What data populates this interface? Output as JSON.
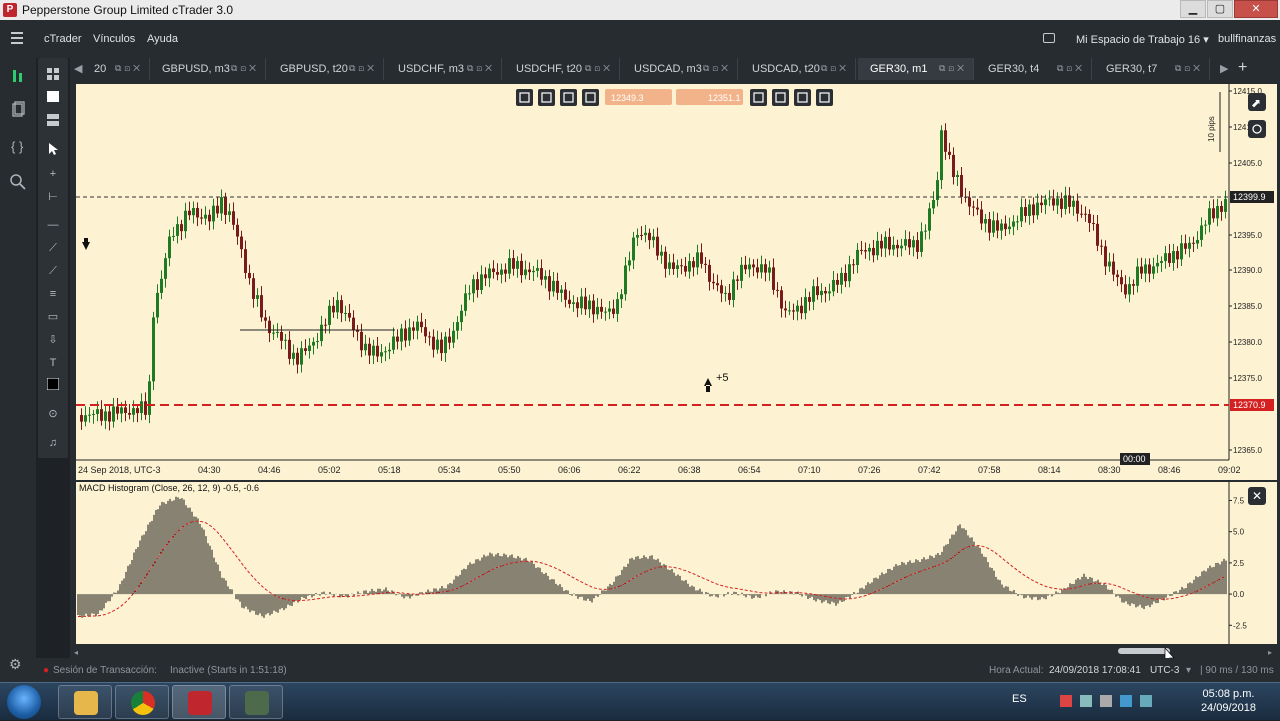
{
  "window": {
    "title": "Pepperstone Group Limited cTrader 3.0",
    "app_icon_letter": "P",
    "minimize_glyph": "▁",
    "maximize_glyph": "▢",
    "close_glyph": "✕"
  },
  "menubar": {
    "items": [
      "cTrader",
      "Vínculos",
      "Ayuda"
    ],
    "workspace": "Mi Espacio de Trabajo 16",
    "workspace_caret": "▾",
    "user": "bullfinanzas"
  },
  "tabs": [
    {
      "label": "20",
      "active": false
    },
    {
      "label": "GBPUSD, m3",
      "active": false
    },
    {
      "label": "GBPUSD, t20",
      "active": false
    },
    {
      "label": "USDCHF, m3",
      "active": false
    },
    {
      "label": "USDCHF, t20",
      "active": false
    },
    {
      "label": "USDCAD, m3",
      "active": false
    },
    {
      "label": "USDCAD, t20",
      "active": false
    },
    {
      "label": "GER30, m1",
      "active": true
    },
    {
      "label": "GER30, t4",
      "active": false
    },
    {
      "label": "GER30, t7",
      "active": false
    }
  ],
  "tab_controls": {
    "left_arrow": "◀",
    "right_arrow": "▶",
    "add": "+"
  },
  "chart": {
    "symbol": "GER30",
    "timeframe": "m1",
    "sell_price": "12349.3",
    "buy_price": "12351.1",
    "colors": {
      "background": "#fdf3d3",
      "bull": "#1f7a24",
      "bear": "#7a1b1b",
      "stop_line": "#d42020",
      "current_line": "#333333"
    },
    "price_axis_labels": [
      "12415.0",
      "12410.0",
      "12405.0",
      "12399.9",
      "12395.0",
      "12390.0",
      "12385.0",
      "12380.0",
      "12375.0",
      "12370.9",
      "12365.0"
    ],
    "current_price": "12399.9",
    "stop_price": "12370.9",
    "pips_label": "10 pips",
    "time_axis_labels": [
      "24 Sep 2018, UTC-3",
      "04:30",
      "04:46",
      "05:02",
      "05:18",
      "05:34",
      "05:50",
      "06:06",
      "06:22",
      "06:38",
      "06:54",
      "07:10",
      "07:26",
      "07:42",
      "07:58",
      "08:14",
      "08:30",
      "08:46",
      "09:02"
    ],
    "crosshair_time": "00:00",
    "trade_marker_label": "+5"
  },
  "chart_data": {
    "type": "bar",
    "title": "MACD Histogram (Close, 26, 12, 9) -0.5, -0.6",
    "ylim": [
      -4,
      8.5
    ],
    "y_ticks": [
      "7.5",
      "5.0",
      "2.5",
      "0.0",
      "-2.5"
    ],
    "series": [
      {
        "name": "MACD Histogram",
        "values": [
          -1.8,
          -1.6,
          0.5,
          4.2,
          7.2,
          7.8,
          5.6,
          1.5,
          -1.0,
          -1.8,
          -1.2,
          -0.3,
          0.1,
          -0.2,
          0.2,
          0.4,
          -0.3,
          0.2,
          0.6,
          2.3,
          3.2,
          3.1,
          2.7,
          1.3,
          0.0,
          -0.6,
          0.8,
          2.9,
          3.0,
          1.8,
          0.5,
          -0.2,
          0.1,
          -0.3,
          0.2,
          0.1,
          -0.5,
          -0.8,
          0.2,
          1.4,
          2.4,
          2.7,
          3.2,
          5.6,
          3.5,
          0.8,
          -0.2,
          -0.4,
          0.3,
          1.5,
          0.8,
          -0.7,
          -1.1,
          -0.3,
          0.6,
          2.0,
          2.8
        ]
      }
    ],
    "signal_color": "#d42020"
  },
  "chart_toolbar": [
    "zoom-icon",
    "settings-icon",
    "indicator-icon",
    "order-icon",
    "trade-icon",
    "list-icon",
    "eye-icon",
    "eye-off-icon",
    "building-icon"
  ],
  "statusbar": {
    "session_label": "Sesión de Transacción:",
    "session_value": "Inactive (Starts in 1:51:18)",
    "time_label": "Hora Actual:",
    "time_value": "24/09/2018 17:08:41",
    "tz": "UTC-3",
    "tz_caret": "▾",
    "latency": "| 90 ms / 130 ms"
  },
  "taskbar": {
    "lang": "ES",
    "time": "05:08 p.m.",
    "date": "24/09/2018"
  }
}
